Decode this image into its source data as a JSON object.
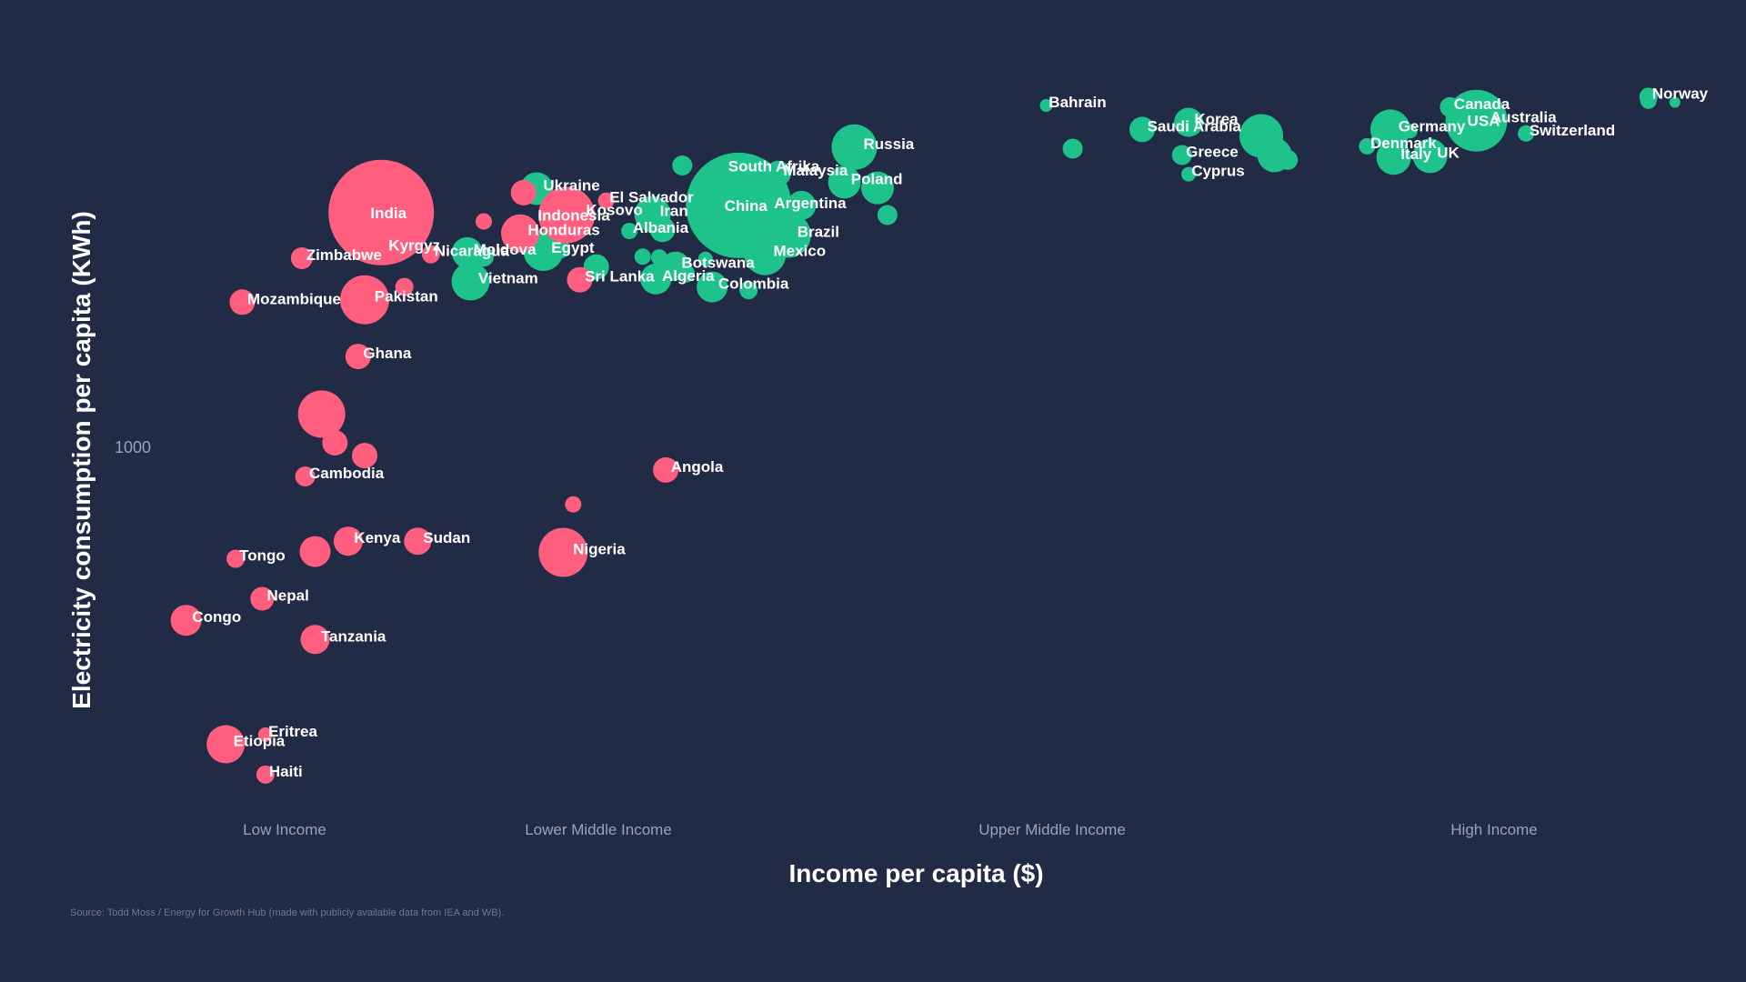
{
  "chart_data": {
    "type": "scatter",
    "title": "",
    "xlabel": "Income per capita ($)",
    "ylabel": "Electricity consumption per capita (KWh)",
    "y_scale": "log",
    "y_ticks": [
      "1000"
    ],
    "x_categories": [
      "Low Income",
      "Lower Middle Income",
      "Upper Middle Income",
      "High Income"
    ],
    "grid": false,
    "legend": "none",
    "source": "Source: Todd Moss / Energy for Growth Hub (made with publicly available data from IEA and WB).",
    "colors": {
      "background": "#222b45",
      "high_consumption": "#1ec28b",
      "low_consumption": "#ff5e7e"
    },
    "series": [
      {
        "key": "above",
        "color": "#1ec28b",
        "points": [
          {
            "label": "Norway",
            "x": 1.285,
            "y": 1.1,
            "r": 10
          },
          {
            "label": "",
            "x": 1.285,
            "y": 1.095,
            "r": 9
          },
          {
            "label": "",
            "x": 1.325,
            "y": 1.093,
            "r": 6
          },
          {
            "label": "Bahrain",
            "x": 0.375,
            "y": 1.089,
            "r": 7
          },
          {
            "label": "Canada",
            "x": 0.985,
            "y": 1.087,
            "r": 11
          },
          {
            "label": "USA",
            "x": 1.025,
            "y": 1.07,
            "r": 34
          },
          {
            "label": "Australia",
            "x": 1.04,
            "y": 1.07,
            "r": 11
          },
          {
            "label": "Korea",
            "x": 0.59,
            "y": 1.068,
            "r": 16
          },
          {
            "label": "Saudi Arabia",
            "x": 0.52,
            "y": 1.059,
            "r": 14
          },
          {
            "label": "",
            "x": 0.7,
            "y": 1.051,
            "r": 24
          },
          {
            "label": "Germany",
            "x": 0.895,
            "y": 1.059,
            "r": 22
          },
          {
            "label": "",
            "x": 0.925,
            "y": 1.057,
            "r": 8
          },
          {
            "label": "Switzerland",
            "x": 1.1,
            "y": 1.054,
            "r": 9
          },
          {
            "label": "Russia",
            "x": 0.085,
            "y": 1.037,
            "r": 25
          },
          {
            "label": "",
            "x": 0.415,
            "y": 1.035,
            "r": 11
          },
          {
            "label": "Denmark",
            "x": 0.86,
            "y": 1.038,
            "r": 9
          },
          {
            "label": "Greece",
            "x": 0.58,
            "y": 1.027,
            "r": 11
          },
          {
            "label": "",
            "x": 0.72,
            "y": 1.027,
            "r": 19
          },
          {
            "label": "Italy",
            "x": 0.9,
            "y": 1.024,
            "r": 19
          },
          {
            "label": "UK",
            "x": 0.955,
            "y": 1.026,
            "r": 19
          },
          {
            "label": "",
            "x": 0.74,
            "y": 1.021,
            "r": 11
          },
          {
            "label": "South Afrika",
            "x": -0.11,
            "y": 1.009,
            "r": 8
          },
          {
            "label": "",
            "x": -0.175,
            "y": 1.014,
            "r": 11
          },
          {
            "label": "Malaysia",
            "x": -0.03,
            "y": 1.004,
            "r": 14
          },
          {
            "label": "Cyprus",
            "x": 0.59,
            "y": 1.003,
            "r": 8
          },
          {
            "label": "Poland",
            "x": 0.07,
            "y": 0.993,
            "r": 18
          },
          {
            "label": "",
            "x": 0.12,
            "y": 0.986,
            "r": 18
          },
          {
            "label": "Ukraine",
            "x": -0.395,
            "y": 0.985,
            "r": 18
          },
          {
            "label": "China",
            "x": -0.09,
            "y": 0.964,
            "r": 58
          },
          {
            "label": "Argentina",
            "x": -0.045,
            "y": 0.963,
            "r": 16
          },
          {
            "label": "",
            "x": 0.005,
            "y": 0.964,
            "r": 16
          },
          {
            "label": "Kosovo",
            "x": -0.325,
            "y": 0.954,
            "r": 8
          },
          {
            "label": "Iran",
            "x": -0.22,
            "y": 0.953,
            "r": 20
          },
          {
            "label": "",
            "x": 0.135,
            "y": 0.952,
            "r": 11
          },
          {
            "label": "Brazil",
            "x": -0.015,
            "y": 0.927,
            "r": 25
          },
          {
            "label": "Albania",
            "x": -0.255,
            "y": 0.932,
            "r": 9
          },
          {
            "label": "",
            "x": -0.205,
            "y": 0.934,
            "r": 14
          },
          {
            "label": "Kyrgyz",
            "x": -0.625,
            "y": 0.91,
            "r": 11
          },
          {
            "label": "Moldova",
            "x": -0.5,
            "y": 0.905,
            "r": 17
          },
          {
            "label": "Egypt",
            "x": -0.385,
            "y": 0.907,
            "r": 22
          },
          {
            "label": "",
            "x": -0.36,
            "y": 0.91,
            "r": 11
          },
          {
            "label": "Mexico",
            "x": -0.05,
            "y": 0.903,
            "r": 23
          },
          {
            "label": "",
            "x": -0.01,
            "y": 0.91,
            "r": 8
          },
          {
            "label": "",
            "x": -0.475,
            "y": 0.9,
            "r": 11
          },
          {
            "label": "",
            "x": -0.235,
            "y": 0.9,
            "r": 9
          },
          {
            "label": "Botswana",
            "x": -0.185,
            "y": 0.888,
            "r": 16
          },
          {
            "label": "",
            "x": -0.21,
            "y": 0.899,
            "r": 9
          },
          {
            "label": "",
            "x": -0.14,
            "y": 0.897,
            "r": 8
          },
          {
            "label": "",
            "x": -0.305,
            "y": 0.887,
            "r": 14
          },
          {
            "label": "Vietnam",
            "x": -0.495,
            "y": 0.869,
            "r": 21
          },
          {
            "label": "Algeria",
            "x": -0.215,
            "y": 0.872,
            "r": 17
          },
          {
            "label": "",
            "x": -0.17,
            "y": 0.879,
            "r": 10
          },
          {
            "label": "Colombia",
            "x": -0.13,
            "y": 0.862,
            "r": 17
          },
          {
            "label": "",
            "x": -0.075,
            "y": 0.858,
            "r": 10
          }
        ]
      },
      {
        "key": "below",
        "color": "#ff5e7e",
        "points": [
          {
            "label": "India",
            "x": -0.63,
            "y": 0.955,
            "r": 58
          },
          {
            "label": "El Salvador",
            "x": -0.29,
            "y": 0.97,
            "r": 9
          },
          {
            "label": "",
            "x": -0.415,
            "y": 0.98,
            "r": 14
          },
          {
            "label": "Indonesia",
            "x": -0.35,
            "y": 0.952,
            "r": 31
          },
          {
            "label": "Honduras",
            "x": -0.42,
            "y": 0.929,
            "r": 21
          },
          {
            "label": "",
            "x": -0.475,
            "y": 0.944,
            "r": 9
          },
          {
            "label": "Nicaragua",
            "x": -0.555,
            "y": 0.903,
            "r": 10
          },
          {
            "label": "Zimbabwe",
            "x": -0.75,
            "y": 0.898,
            "r": 12
          },
          {
            "label": "Sri Lanka",
            "x": -0.33,
            "y": 0.871,
            "r": 14
          },
          {
            "label": "Pakistan",
            "x": -0.655,
            "y": 0.846,
            "r": 27
          },
          {
            "label": "",
            "x": -0.595,
            "y": 0.862,
            "r": 10
          },
          {
            "label": "Mozambique",
            "x": -0.84,
            "y": 0.843,
            "r": 14
          },
          {
            "label": "Ghana",
            "x": -0.665,
            "y": 0.775,
            "r": 14
          },
          {
            "label": "",
            "x": -0.72,
            "y": 0.703,
            "r": 26
          },
          {
            "label": "",
            "x": -0.7,
            "y": 0.667,
            "r": 14
          },
          {
            "label": "",
            "x": -0.655,
            "y": 0.651,
            "r": 14
          },
          {
            "label": "Cambodia",
            "x": -0.745,
            "y": 0.625,
            "r": 11
          },
          {
            "label": "Angola",
            "x": -0.2,
            "y": 0.633,
            "r": 14
          },
          {
            "label": "",
            "x": -0.34,
            "y": 0.59,
            "r": 9
          },
          {
            "label": "Kenya",
            "x": -0.68,
            "y": 0.544,
            "r": 16
          },
          {
            "label": "",
            "x": -0.73,
            "y": 0.531,
            "r": 17
          },
          {
            "label": "Sudan",
            "x": -0.575,
            "y": 0.544,
            "r": 15
          },
          {
            "label": "Nigeria",
            "x": -0.355,
            "y": 0.53,
            "r": 27
          },
          {
            "label": "Tongo",
            "x": -0.85,
            "y": 0.522,
            "r": 10
          },
          {
            "label": "Nepal",
            "x": -0.81,
            "y": 0.472,
            "r": 13
          },
          {
            "label": "Congo",
            "x": -0.925,
            "y": 0.445,
            "r": 17
          },
          {
            "label": "Tanzania",
            "x": -0.73,
            "y": 0.421,
            "r": 16
          },
          {
            "label": "Eritrea",
            "x": -0.805,
            "y": 0.302,
            "r": 8
          },
          {
            "label": "Etiopia",
            "x": -0.865,
            "y": 0.29,
            "r": 21
          },
          {
            "label": "Haiti",
            "x": -0.805,
            "y": 0.252,
            "r": 10
          }
        ]
      }
    ]
  }
}
